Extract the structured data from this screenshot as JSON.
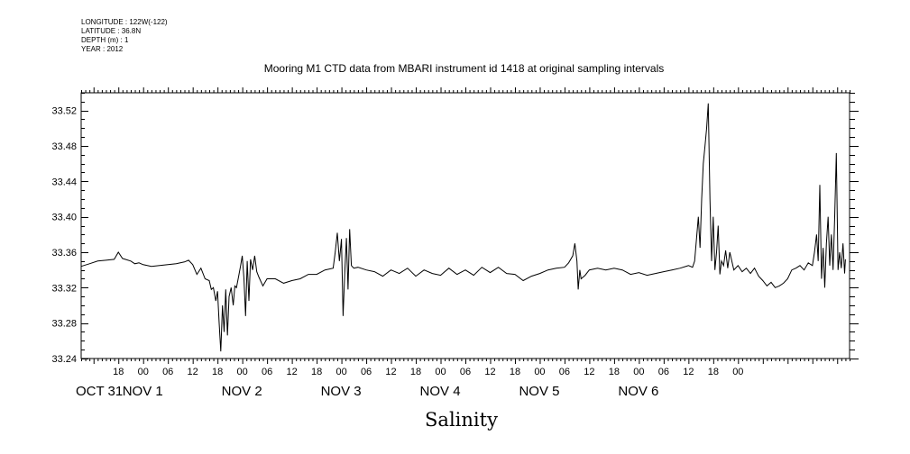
{
  "meta": {
    "longitude": "LONGITUDE : 122W(-122)",
    "latitude": "LATITUDE : 36.8N",
    "depth": "DEPTH (m) : 1",
    "year": "YEAR : 2012"
  },
  "chart_data": {
    "type": "line",
    "title": "Mooring M1 CTD data from MBARI instrument id 1418 at original sampling intervals",
    "xlabel": "Salinity",
    "ylabel": "",
    "ylim": [
      33.24,
      33.54
    ],
    "yticks": [
      "33.24",
      "33.28",
      "33.32",
      "33.36",
      "33.40",
      "33.44",
      "33.48",
      "33.52"
    ],
    "xlim_hours_note": "hours from Oct 31 00:00 to Nov 7 03:00",
    "hour_tick_labels": [
      "18",
      "00",
      "06",
      "12",
      "18",
      "00",
      "06",
      "12",
      "18",
      "00",
      "06",
      "12",
      "18",
      "00",
      "06",
      "12",
      "18",
      "00",
      "06",
      "12",
      "18",
      "00",
      "06",
      "12",
      "18",
      "00"
    ],
    "day_labels": [
      "OCT 31",
      "NOV  1",
      "NOV  2",
      "NOV  3",
      "NOV  4",
      "NOV  5",
      "NOV  6"
    ],
    "grid": false,
    "series": [
      {
        "name": "",
        "points": [
          [
            9,
            33.344
          ],
          [
            11,
            33.347
          ],
          [
            13,
            33.35
          ],
          [
            15,
            33.351
          ],
          [
            17,
            33.352
          ],
          [
            18,
            33.36
          ],
          [
            19,
            33.353
          ],
          [
            21,
            33.35
          ],
          [
            22,
            33.347
          ],
          [
            23,
            33.348
          ],
          [
            24,
            33.346
          ],
          [
            26,
            33.344
          ],
          [
            28,
            33.345
          ],
          [
            30,
            33.346
          ],
          [
            32,
            33.347
          ],
          [
            34,
            33.349
          ],
          [
            35,
            33.351
          ],
          [
            36,
            33.346
          ],
          [
            37,
            33.335
          ],
          [
            38,
            33.342
          ],
          [
            39,
            33.33
          ],
          [
            40,
            33.328
          ],
          [
            40.5,
            33.318
          ],
          [
            41,
            33.32
          ],
          [
            41.6,
            33.305
          ],
          [
            42,
            33.316
          ],
          [
            42.4,
            33.28
          ],
          [
            42.8,
            33.248
          ],
          [
            43.2,
            33.3
          ],
          [
            43.6,
            33.27
          ],
          [
            44,
            33.318
          ],
          [
            44.4,
            33.266
          ],
          [
            44.8,
            33.31
          ],
          [
            45.3,
            33.32
          ],
          [
            45.8,
            33.3
          ],
          [
            46.2,
            33.322
          ],
          [
            46.6,
            33.32
          ],
          [
            47.2,
            33.335
          ],
          [
            47.6,
            33.345
          ],
          [
            48,
            33.356
          ],
          [
            48.4,
            33.33
          ],
          [
            48.8,
            33.288
          ],
          [
            49.2,
            33.35
          ],
          [
            49.6,
            33.305
          ],
          [
            50,
            33.352
          ],
          [
            50.5,
            33.34
          ],
          [
            51,
            33.356
          ],
          [
            51.5,
            33.338
          ],
          [
            52,
            33.332
          ],
          [
            53,
            33.322
          ],
          [
            54,
            33.33
          ],
          [
            56,
            33.33
          ],
          [
            58,
            33.325
          ],
          [
            60,
            33.328
          ],
          [
            62,
            33.33
          ],
          [
            64,
            33.335
          ],
          [
            66,
            33.335
          ],
          [
            68,
            33.34
          ],
          [
            70,
            33.342
          ],
          [
            70.5,
            33.36
          ],
          [
            71,
            33.382
          ],
          [
            71.5,
            33.35
          ],
          [
            72,
            33.375
          ],
          [
            72.4,
            33.288
          ],
          [
            72.8,
            33.335
          ],
          [
            73.2,
            33.376
          ],
          [
            73.6,
            33.318
          ],
          [
            74,
            33.386
          ],
          [
            74.4,
            33.345
          ],
          [
            75,
            33.342
          ],
          [
            76,
            33.343
          ],
          [
            78,
            33.34
          ],
          [
            80,
            33.338
          ],
          [
            82,
            33.333
          ],
          [
            84,
            33.34
          ],
          [
            86,
            33.336
          ],
          [
            88,
            33.342
          ],
          [
            90,
            33.333
          ],
          [
            92,
            33.34
          ],
          [
            94,
            33.336
          ],
          [
            96,
            33.334
          ],
          [
            98,
            33.342
          ],
          [
            100,
            33.335
          ],
          [
            102,
            33.34
          ],
          [
            104,
            33.334
          ],
          [
            106,
            33.343
          ],
          [
            108,
            33.337
          ],
          [
            110,
            33.343
          ],
          [
            112,
            33.336
          ],
          [
            114,
            33.335
          ],
          [
            116,
            33.328
          ],
          [
            118,
            33.333
          ],
          [
            120,
            33.336
          ],
          [
            122,
            33.34
          ],
          [
            124,
            33.342
          ],
          [
            126,
            33.343
          ],
          [
            127,
            33.348
          ],
          [
            128,
            33.356
          ],
          [
            128.5,
            33.37
          ],
          [
            129,
            33.35
          ],
          [
            129.3,
            33.318
          ],
          [
            129.7,
            33.34
          ],
          [
            130,
            33.33
          ],
          [
            131,
            33.334
          ],
          [
            132,
            33.34
          ],
          [
            134,
            33.342
          ],
          [
            136,
            33.34
          ],
          [
            138,
            33.342
          ],
          [
            140,
            33.34
          ],
          [
            142,
            33.335
          ],
          [
            144,
            33.337
          ],
          [
            146,
            33.334
          ],
          [
            148,
            33.336
          ],
          [
            150,
            33.338
          ],
          [
            152,
            33.34
          ],
          [
            154,
            33.342
          ],
          [
            156,
            33.345
          ],
          [
            157,
            33.343
          ],
          [
            157.5,
            33.35
          ],
          [
            158,
            33.378
          ],
          [
            158.4,
            33.4
          ],
          [
            158.8,
            33.365
          ],
          [
            159.2,
            33.42
          ],
          [
            159.6,
            33.46
          ],
          [
            160,
            33.48
          ],
          [
            160.4,
            33.5
          ],
          [
            160.8,
            33.528
          ],
          [
            161.2,
            33.42
          ],
          [
            161.6,
            33.35
          ],
          [
            162,
            33.4
          ],
          [
            162.4,
            33.34
          ],
          [
            162.8,
            33.36
          ],
          [
            163.2,
            33.39
          ],
          [
            163.6,
            33.335
          ],
          [
            164,
            33.35
          ],
          [
            164.5,
            33.345
          ],
          [
            165,
            33.362
          ],
          [
            165.5,
            33.342
          ],
          [
            166,
            33.36
          ],
          [
            167,
            33.34
          ],
          [
            168,
            33.345
          ],
          [
            169,
            33.338
          ],
          [
            170,
            33.342
          ],
          [
            171,
            33.336
          ],
          [
            172,
            33.342
          ],
          [
            173,
            33.333
          ],
          [
            174,
            33.328
          ],
          [
            175,
            33.322
          ],
          [
            176,
            33.326
          ],
          [
            177,
            33.32
          ],
          [
            178,
            33.322
          ],
          [
            179,
            33.325
          ],
          [
            180,
            33.33
          ],
          [
            181,
            33.34
          ],
          [
            182,
            33.342
          ],
          [
            183,
            33.345
          ],
          [
            184,
            33.34
          ],
          [
            185,
            33.348
          ],
          [
            186,
            33.345
          ],
          [
            186.5,
            33.36
          ],
          [
            187,
            33.38
          ],
          [
            187.4,
            33.35
          ],
          [
            187.8,
            33.436
          ],
          [
            188.2,
            33.33
          ],
          [
            188.6,
            33.365
          ],
          [
            189,
            33.32
          ],
          [
            189.4,
            33.37
          ],
          [
            189.8,
            33.4
          ],
          [
            190.2,
            33.345
          ],
          [
            190.6,
            33.38
          ],
          [
            191,
            33.34
          ],
          [
            191.4,
            33.4
          ],
          [
            191.8,
            33.472
          ],
          [
            192.2,
            33.34
          ],
          [
            192.6,
            33.36
          ],
          [
            193,
            33.342
          ],
          [
            193.4,
            33.37
          ],
          [
            193.8,
            33.336
          ],
          [
            194,
            33.352
          ]
        ]
      }
    ]
  }
}
